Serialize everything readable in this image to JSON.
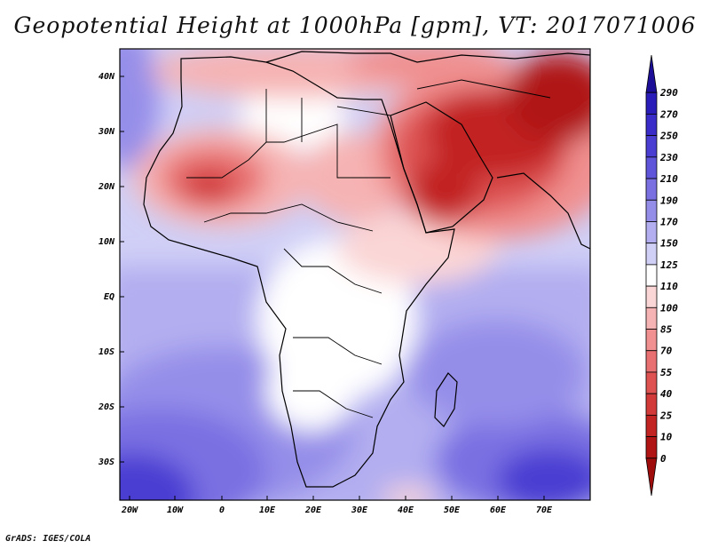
{
  "title": "Geopotential Height at 1000hPa [gpm], VT: 2017071006",
  "credit": "GrADS: IGES/COLA",
  "map": {
    "lat_labels": [
      "40N",
      "30N",
      "20N",
      "10N",
      "EQ",
      "10S",
      "20S",
      "30S"
    ],
    "lon_labels": [
      "20W",
      "10W",
      "0",
      "10E",
      "20E",
      "30E",
      "40E",
      "50E",
      "60E",
      "70E"
    ],
    "variable": "Geopotential Height",
    "level": "1000hPa",
    "units": "gpm",
    "valid_time": "2017071006"
  },
  "colorbar": {
    "labels": [
      "290",
      "270",
      "250",
      "230",
      "210",
      "190",
      "170",
      "150",
      "125",
      "110",
      "100",
      "85",
      "70",
      "55",
      "40",
      "25",
      "10",
      "0"
    ],
    "colors": [
      "#1c0e96",
      "#2a1cb8",
      "#3a2cc8",
      "#4a3ed2",
      "#5f55da",
      "#7a70e2",
      "#958ee9",
      "#b2aef0",
      "#d0cff6",
      "#ffffff",
      "#fbd6d6",
      "#f6b3b3",
      "#f09090",
      "#e87070",
      "#de5252",
      "#d23a3a",
      "#c22424",
      "#b01414",
      "#9e0c0c"
    ]
  }
}
